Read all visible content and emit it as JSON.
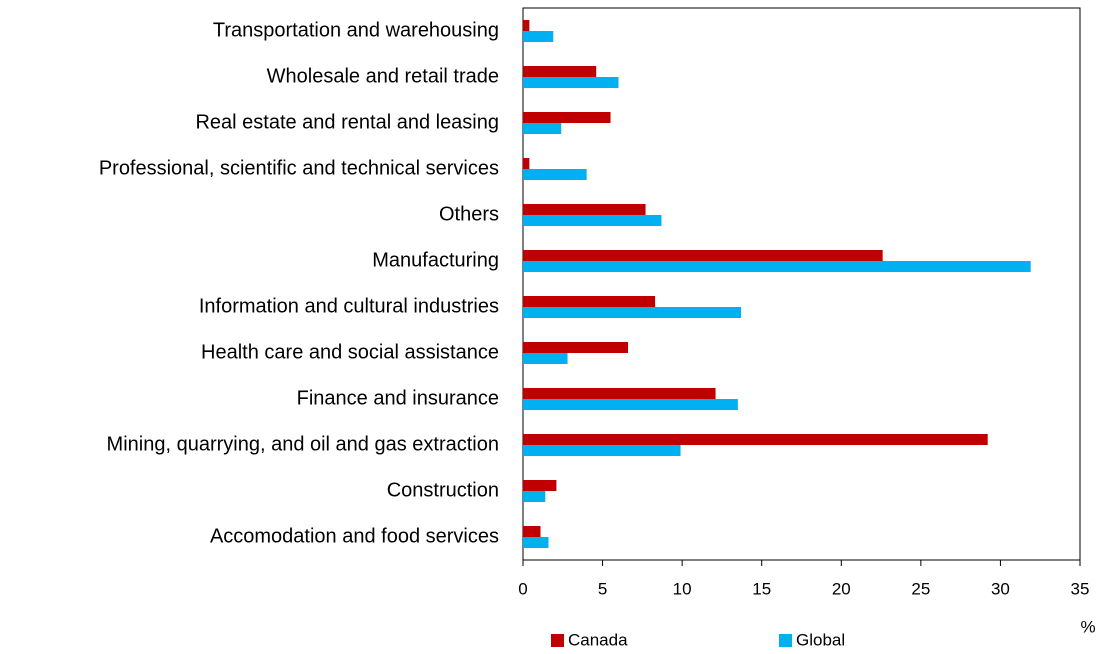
{
  "chart_data": {
    "type": "bar",
    "orientation": "horizontal",
    "categories": [
      "Transportation and warehousing",
      "Wholesale and retail trade",
      "Real estate and rental and leasing",
      "Professional, scientific and technical services",
      "Others",
      "Manufacturing",
      "Information and cultural industries",
      "Health care and social assistance",
      "Finance and insurance",
      "Mining, quarrying, and oil and gas extraction",
      "Construction",
      "Accomodation and food services"
    ],
    "series": [
      {
        "name": "Canada",
        "color": "#c00000",
        "values": [
          0.4,
          4.6,
          5.5,
          0.4,
          7.7,
          22.6,
          8.3,
          6.6,
          12.1,
          29.2,
          2.1,
          1.1
        ]
      },
      {
        "name": "Global",
        "color": "#00b0f0",
        "values": [
          1.9,
          6.0,
          2.4,
          4.0,
          8.7,
          31.9,
          13.7,
          2.8,
          13.5,
          9.9,
          1.4,
          1.6
        ]
      }
    ],
    "x_label": "%",
    "xlim": [
      0,
      35
    ],
    "xticks": [
      0,
      5,
      10,
      15,
      20,
      25,
      30,
      35
    ],
    "legend": "bottom",
    "grid": false
  }
}
